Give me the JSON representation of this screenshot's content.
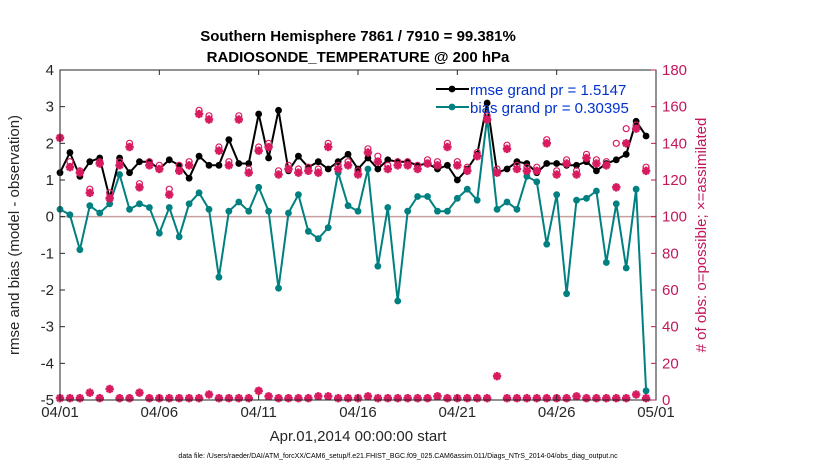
{
  "chart_data": {
    "type": "line",
    "title": "Southern Hemisphere 7861 / 7910 = 99.381%",
    "subtitle": "RADIOSONDE_TEMPERATURE @ 200 hPa",
    "xlabel": "Apr.01,2014 00:00:00 start",
    "ylabel_left": "rmse and bias (model - observation)",
    "ylabel_right": "# of obs: o=possible; ×=assimilated",
    "footnote": "data file: /Users/raeder/DAI/ATM_forcXX/CAM6_setup/f.e21.FHIST_BGC.f09_025.CAM6assim.011/Diags_NTrS_2014-04/obs_diag_output.nc",
    "x_range": [
      0,
      30
    ],
    "x_tick_values": [
      0,
      5,
      10,
      15,
      20,
      25,
      30
    ],
    "x_tick_labels": [
      "04/01",
      "04/06",
      "04/11",
      "04/16",
      "04/21",
      "04/26",
      "05/01"
    ],
    "ylim_left": [
      -5,
      4
    ],
    "yticks_left": [
      "-5",
      "-4",
      "-3",
      "-2",
      "-1",
      "0",
      "1",
      "2",
      "3",
      "4"
    ],
    "ylim_right": [
      0,
      180
    ],
    "yticks_right": [
      "0",
      "20",
      "40",
      "60",
      "80",
      "100",
      "120",
      "140",
      "160",
      "180"
    ],
    "legend": [
      {
        "label": "rmse grand pr = 1.5147",
        "color": "#000000"
      },
      {
        "label": "bias grand pr = 0.30395",
        "color": "#008080"
      }
    ],
    "colors": {
      "rmse": "#000000",
      "bias": "#008080",
      "obs": "#d81b60",
      "axis_right": "#c2185b",
      "zero_line": "#c8a0a0",
      "legend_text": "#0033cc"
    },
    "series": [
      {
        "name": "rmse",
        "x": [
          0,
          0.5,
          1,
          1.5,
          2,
          2.5,
          3,
          3.5,
          4,
          4.5,
          5,
          5.5,
          6,
          6.5,
          7,
          7.5,
          8,
          8.5,
          9,
          9.5,
          10,
          10.5,
          11,
          11.5,
          12,
          12.5,
          13,
          13.5,
          14,
          14.5,
          15,
          15.5,
          16,
          16.5,
          17,
          17.5,
          18,
          18.5,
          19,
          19.5,
          20,
          20.5,
          21,
          21.5,
          22,
          22.5,
          23,
          23.5,
          24,
          24.5,
          25,
          25.5,
          26,
          26.5,
          27,
          27.5,
          28,
          28.5,
          29,
          29.5
        ],
        "values": [
          1.2,
          1.75,
          1.1,
          1.5,
          1.6,
          0.5,
          1.6,
          1.2,
          1.5,
          1.5,
          1.3,
          1.55,
          1.4,
          1.05,
          1.65,
          1.4,
          1.4,
          2.1,
          1.45,
          1.45,
          2.8,
          1.6,
          2.9,
          1.25,
          1.65,
          1.35,
          1.5,
          1.3,
          1.5,
          1.7,
          1.3,
          1.6,
          1.3,
          1.55,
          1.5,
          1.5,
          1.4,
          1.45,
          1.3,
          1.4,
          1.0,
          1.3,
          1.7,
          3.1,
          1.2,
          1.3,
          1.5,
          1.45,
          1.2,
          1.45,
          1.45,
          1.4,
          1.4,
          1.5,
          1.25,
          1.45,
          1.55,
          1.7,
          2.6,
          2.2
        ]
      },
      {
        "name": "bias",
        "x": [
          0,
          0.5,
          1,
          1.5,
          2,
          2.5,
          3,
          3.5,
          4,
          4.5,
          5,
          5.5,
          6,
          6.5,
          7,
          7.5,
          8,
          8.5,
          9,
          9.5,
          10,
          10.5,
          11,
          11.5,
          12,
          12.5,
          13,
          13.5,
          14,
          14.5,
          15,
          15.5,
          16,
          16.5,
          17,
          17.5,
          18,
          18.5,
          19,
          19.5,
          20,
          20.5,
          21,
          21.5,
          22,
          22.5,
          23,
          23.5,
          24,
          24.5,
          25,
          25.5,
          26,
          26.5,
          27,
          27.5,
          28,
          28.5,
          29,
          29.5
        ],
        "values": [
          0.2,
          0.05,
          -0.9,
          0.3,
          0.1,
          0.35,
          1.15,
          0.2,
          0.35,
          0.25,
          -0.45,
          0.25,
          -0.55,
          0.35,
          0.65,
          0.2,
          -1.65,
          0.15,
          0.4,
          0.15,
          0.8,
          0.15,
          -1.95,
          0.1,
          0.6,
          -0.4,
          -0.6,
          -0.3,
          1.2,
          0.3,
          0.15,
          1.3,
          -1.35,
          0.25,
          -2.3,
          0.15,
          0.55,
          0.55,
          0.15,
          0.15,
          0.5,
          0.75,
          0.45,
          2.7,
          0.2,
          0.4,
          0.2,
          1.1,
          0.95,
          -0.75,
          0.6,
          -2.1,
          0.45,
          0.5,
          0.7,
          -1.25,
          0.35,
          -1.4,
          0.75,
          -4.75
        ]
      },
      {
        "name": "obs_possible",
        "x": [
          0,
          0.5,
          1,
          1.5,
          2,
          2.5,
          3,
          3.5,
          4,
          4.5,
          5,
          5.5,
          6,
          6.5,
          7,
          7.5,
          8,
          8.5,
          9,
          9.5,
          10,
          10.5,
          11,
          11.5,
          12,
          12.5,
          13,
          13.5,
          14,
          14.5,
          15,
          15.5,
          16,
          16.5,
          17,
          17.5,
          18,
          18.5,
          19,
          19.5,
          20,
          20.5,
          21,
          21.5,
          22,
          22.5,
          23,
          23.5,
          24,
          24.5,
          25,
          25.5,
          26,
          26.5,
          27,
          27.5,
          28,
          28.5,
          29,
          29.5
        ],
        "values": [
          143,
          130,
          125,
          115,
          130,
          113,
          130,
          140,
          118,
          130,
          128,
          115,
          128,
          130,
          158,
          155,
          138,
          130,
          155,
          126,
          138,
          140,
          125,
          128,
          126,
          127,
          126,
          140,
          128,
          130,
          125,
          137,
          133,
          128,
          130,
          130,
          128,
          131,
          130,
          140,
          130,
          127,
          135,
          155,
          126,
          139,
          128,
          127,
          127,
          142,
          125,
          131,
          125,
          134,
          131,
          130,
          140,
          148,
          150,
          127
        ]
      },
      {
        "name": "obs_assimilated",
        "x": [
          0,
          0.5,
          1,
          1.5,
          2,
          2.5,
          3,
          3.5,
          4,
          4.5,
          5,
          5.5,
          6,
          6.5,
          7,
          7.5,
          8,
          8.5,
          9,
          9.5,
          10,
          10.5,
          11,
          11.5,
          12,
          12.5,
          13,
          13.5,
          14,
          14.5,
          15,
          15.5,
          16,
          16.5,
          17,
          17.5,
          18,
          18.5,
          19,
          19.5,
          20,
          20.5,
          21,
          21.5,
          22,
          22.5,
          23,
          23.5,
          24,
          24.5,
          25,
          25.5,
          26,
          26.5,
          27,
          27.5,
          28,
          28.5,
          29,
          29.5
        ],
        "values": [
          143,
          127,
          124,
          113,
          129,
          110,
          128,
          138,
          116,
          128,
          126,
          112,
          125,
          128,
          156,
          153,
          136,
          128,
          153,
          124,
          136,
          138,
          123,
          126,
          124,
          125,
          124,
          138,
          126,
          128,
          123,
          135,
          130,
          126,
          128,
          128,
          126,
          129,
          128,
          138,
          128,
          125,
          133,
          153,
          124,
          137,
          126,
          125,
          125,
          140,
          123,
          129,
          123,
          132,
          129,
          128,
          116,
          140,
          148,
          125
        ]
      },
      {
        "name": "obs_possible_low",
        "x": [
          0,
          0.5,
          1,
          1.5,
          2,
          2.5,
          3,
          3.5,
          4,
          4.5,
          5,
          5.5,
          6,
          6.5,
          7,
          7.5,
          8,
          8.5,
          9,
          9.5,
          10,
          10.5,
          11,
          11.5,
          12,
          12.5,
          13,
          13.5,
          14,
          14.5,
          15,
          15.5,
          16,
          16.5,
          17,
          17.5,
          18,
          18.5,
          19,
          19.5,
          20,
          20.5,
          21,
          21.5,
          22,
          22.5,
          23,
          23.5,
          24,
          24.5,
          25,
          25.5,
          26,
          26.5,
          27,
          27.5,
          28,
          28.5,
          29,
          29.5
        ],
        "values": [
          1,
          1,
          1,
          4,
          1,
          6,
          1,
          1,
          4,
          1,
          1,
          1,
          1,
          1,
          1,
          3,
          1,
          1,
          1,
          1,
          5,
          2,
          1,
          1,
          1,
          1,
          2,
          2,
          1,
          1,
          1,
          2,
          1,
          1,
          1,
          1,
          1,
          1,
          2,
          1,
          1,
          1,
          1,
          1,
          13,
          1,
          1,
          1,
          1,
          1,
          1,
          1,
          2,
          1,
          1,
          1,
          1,
          1,
          3,
          1
        ]
      }
    ]
  }
}
